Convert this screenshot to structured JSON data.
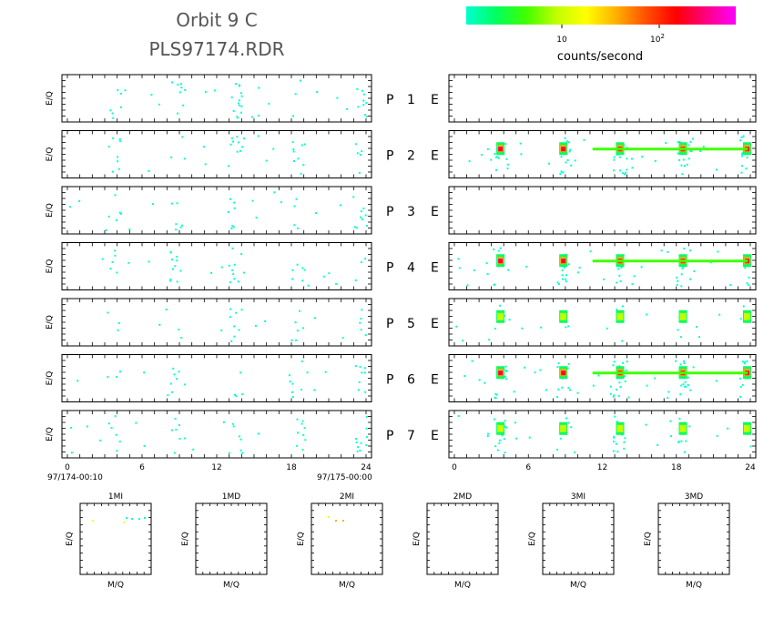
{
  "header": {
    "title_line1": "Orbit 9 C",
    "title_line2": "PLS97174.RDR"
  },
  "colorbar": {
    "stops": [
      "#00ffd0",
      "#00ff60",
      "#40ff00",
      "#c0ff00",
      "#ffff00",
      "#ffb000",
      "#ff5000",
      "#ff0000",
      "#ff0080",
      "#ff00ff"
    ],
    "tick_10": "10",
    "tick_100_base": "10",
    "tick_100_exp": "2",
    "label": "counts/second"
  },
  "chart_data": {
    "type": "heatmap",
    "y_axis_label": "E/Q",
    "x_ticks": [
      "0",
      "6",
      "12",
      "18",
      "24"
    ],
    "x_range": [
      0,
      24
    ],
    "start_time_label": "97/174-00:10",
    "end_time_label": "97/175-00:00",
    "row_labels": [
      {
        "p": "P",
        "n": "1",
        "e": "E"
      },
      {
        "p": "P",
        "n": "2",
        "e": "E"
      },
      {
        "p": "P",
        "n": "3",
        "e": "E"
      },
      {
        "p": "P",
        "n": "4",
        "e": "E"
      },
      {
        "p": "P",
        "n": "5",
        "e": "E"
      },
      {
        "p": "P",
        "n": "6",
        "e": "E"
      },
      {
        "p": "P",
        "n": "7",
        "e": "E"
      }
    ],
    "event_hours": [
      3.7,
      8.8,
      13.4,
      18.5,
      23.7
    ],
    "left_intensity": [
      0.6,
      0.5,
      0.5,
      0.5,
      0.35,
      0.4,
      0.55
    ],
    "right_intensity": [
      0.0,
      1.0,
      0.0,
      0.75,
      0.3,
      1.0,
      0.6
    ],
    "mass_panels": {
      "titles": [
        "1MI",
        "1MD",
        "2MI",
        "2MD",
        "3MI",
        "3MD"
      ],
      "y_label": "E/Q",
      "x_label": "M/Q"
    }
  }
}
